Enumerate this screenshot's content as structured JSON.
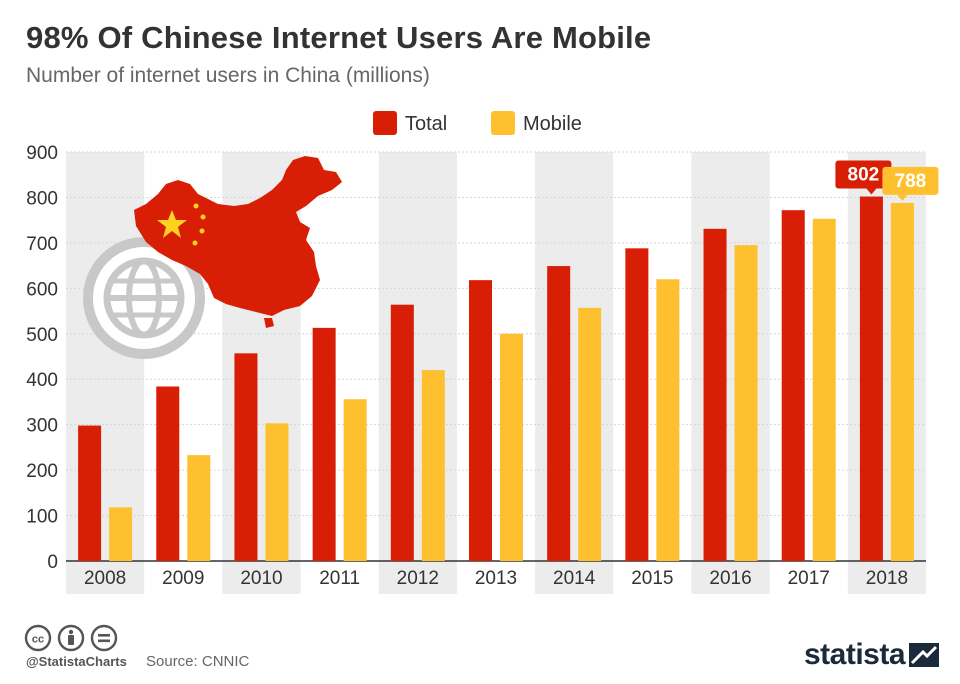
{
  "header": {
    "title": "98% Of Chinese Internet Users Are Mobile",
    "subtitle": "Number of internet users in China (millions)"
  },
  "footer": {
    "handle": "@StatistaCharts",
    "source": "Source: CNNIC",
    "brand": "statista"
  },
  "icons": [
    "china-map-icon",
    "globe-icon",
    "cc-icon",
    "attribution-icon",
    "no-derivatives-icon",
    "statista-logo-icon"
  ],
  "colors": {
    "total": "#d81e05",
    "mobile": "#ffc02f",
    "band": "#ececec",
    "grid": "#d6d6d6",
    "globe": "#c8c8c8"
  },
  "chart_data": {
    "type": "bar",
    "categories": [
      "2008",
      "2009",
      "2010",
      "2011",
      "2012",
      "2013",
      "2014",
      "2015",
      "2016",
      "2017",
      "2018"
    ],
    "series": [
      {
        "name": "Total",
        "values": [
          298,
          384,
          457,
          513,
          564,
          618,
          649,
          688,
          731,
          772,
          802
        ]
      },
      {
        "name": "Mobile",
        "values": [
          118,
          233,
          303,
          356,
          420,
          500,
          557,
          620,
          695,
          753,
          788
        ]
      }
    ],
    "ylim": [
      0,
      900
    ],
    "yticks": [
      0,
      100,
      200,
      300,
      400,
      500,
      600,
      700,
      800,
      900
    ],
    "legend_position": "top-center",
    "grid": true,
    "data_labels": {
      "Total": "802",
      "Mobile": "788"
    }
  }
}
